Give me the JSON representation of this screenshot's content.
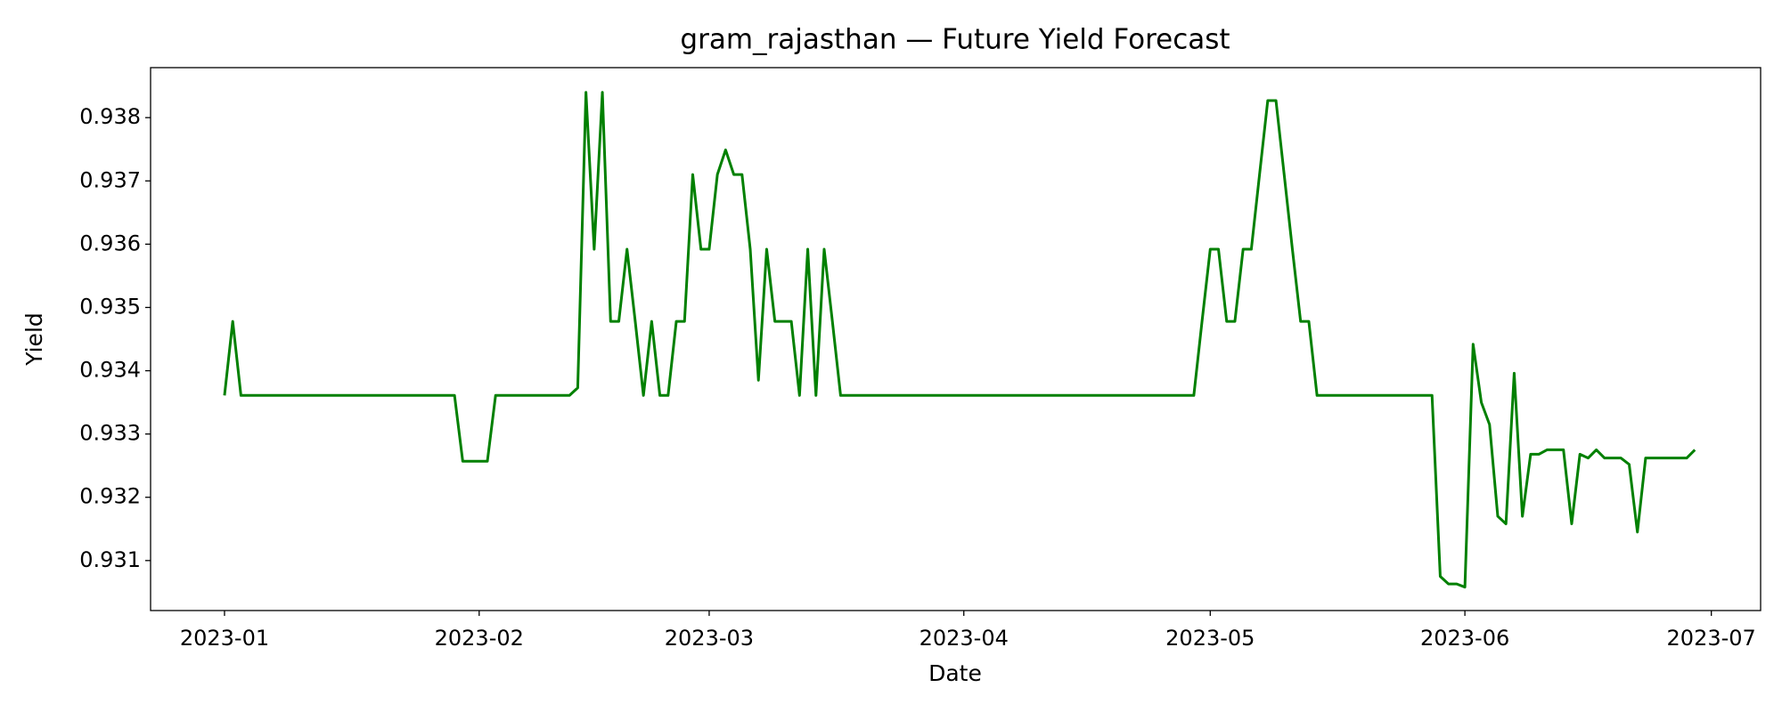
{
  "chart_data": {
    "type": "line",
    "title": "gram_rajasthan — Future Yield Forecast",
    "x_label": "Date",
    "y_label": "Yield",
    "color": "#008000",
    "x": [
      "2023-01-01",
      "2023-01-02",
      "2023-01-03",
      "2023-01-29",
      "2023-01-30",
      "2023-02-02",
      "2023-02-03",
      "2023-02-12",
      "2023-02-13",
      "2023-02-14",
      "2023-02-15",
      "2023-02-16",
      "2023-02-17",
      "2023-02-18",
      "2023-02-19",
      "2023-02-20",
      "2023-02-21",
      "2023-02-22",
      "2023-02-23",
      "2023-02-24",
      "2023-02-25",
      "2023-02-26",
      "2023-02-27",
      "2023-02-28",
      "2023-03-01",
      "2023-03-02",
      "2023-03-03",
      "2023-03-04",
      "2023-03-05",
      "2023-03-06",
      "2023-03-07",
      "2023-03-08",
      "2023-03-09",
      "2023-03-10",
      "2023-03-11",
      "2023-03-12",
      "2023-03-13",
      "2023-03-14",
      "2023-03-15",
      "2023-03-16",
      "2023-03-17",
      "2023-04-29",
      "2023-04-30",
      "2023-05-01",
      "2023-05-02",
      "2023-05-03",
      "2023-05-04",
      "2023-05-05",
      "2023-05-06",
      "2023-05-07",
      "2023-05-08",
      "2023-05-09",
      "2023-05-10",
      "2023-05-11",
      "2023-05-12",
      "2023-05-13",
      "2023-05-14",
      "2023-05-28",
      "2023-05-29",
      "2023-05-30",
      "2023-05-31",
      "2023-06-01",
      "2023-06-02",
      "2023-06-03",
      "2023-06-04",
      "2023-06-05",
      "2023-06-06",
      "2023-06-07",
      "2023-06-08",
      "2023-06-09",
      "2023-06-10",
      "2023-06-11",
      "2023-06-12",
      "2023-06-13",
      "2023-06-14",
      "2023-06-15",
      "2023-06-16",
      "2023-06-17",
      "2023-06-18",
      "2023-06-19",
      "2023-06-20",
      "2023-06-21",
      "2023-06-22",
      "2023-06-23",
      "2023-06-28",
      "2023-06-29"
    ],
    "values": [
      0.93361,
      0.93478,
      0.93361,
      0.93361,
      0.93257,
      0.93257,
      0.93361,
      0.93361,
      0.93373,
      0.9384,
      0.93592,
      0.9384,
      0.93478,
      0.93478,
      0.93592,
      0.93478,
      0.93361,
      0.93478,
      0.93361,
      0.93361,
      0.93478,
      0.93478,
      0.9371,
      0.93592,
      0.93592,
      0.9371,
      0.93749,
      0.9371,
      0.9371,
      0.93592,
      0.93385,
      0.93592,
      0.93478,
      0.93478,
      0.93478,
      0.93361,
      0.93592,
      0.93361,
      0.93592,
      0.93478,
      0.93361,
      0.93361,
      0.93478,
      0.93592,
      0.93592,
      0.93478,
      0.93478,
      0.93592,
      0.93592,
      0.9371,
      0.93827,
      0.93827,
      0.9371,
      0.93592,
      0.93478,
      0.93478,
      0.93361,
      0.93361,
      0.93075,
      0.93063,
      0.93063,
      0.93058,
      0.93442,
      0.9335,
      0.93315,
      0.9317,
      0.93158,
      0.93396,
      0.9317,
      0.93268,
      0.93268,
      0.93275,
      0.93275,
      0.93275,
      0.93158,
      0.93268,
      0.93262,
      0.93275,
      0.93262,
      0.93262,
      0.93262,
      0.93252,
      0.93145,
      0.93262,
      0.93262,
      0.93275
    ],
    "xlim": [
      "2022-12-23",
      "2023-07-07"
    ],
    "xticks": [
      "2023-01",
      "2023-02",
      "2023-03",
      "2023-04",
      "2023-05",
      "2023-06",
      "2023-07"
    ],
    "ylim": [
      0.93021,
      0.93879
    ],
    "yticks": [
      0.931,
      0.932,
      0.933,
      0.934,
      0.935,
      0.936,
      0.937,
      0.938
    ],
    "grid": false
  }
}
